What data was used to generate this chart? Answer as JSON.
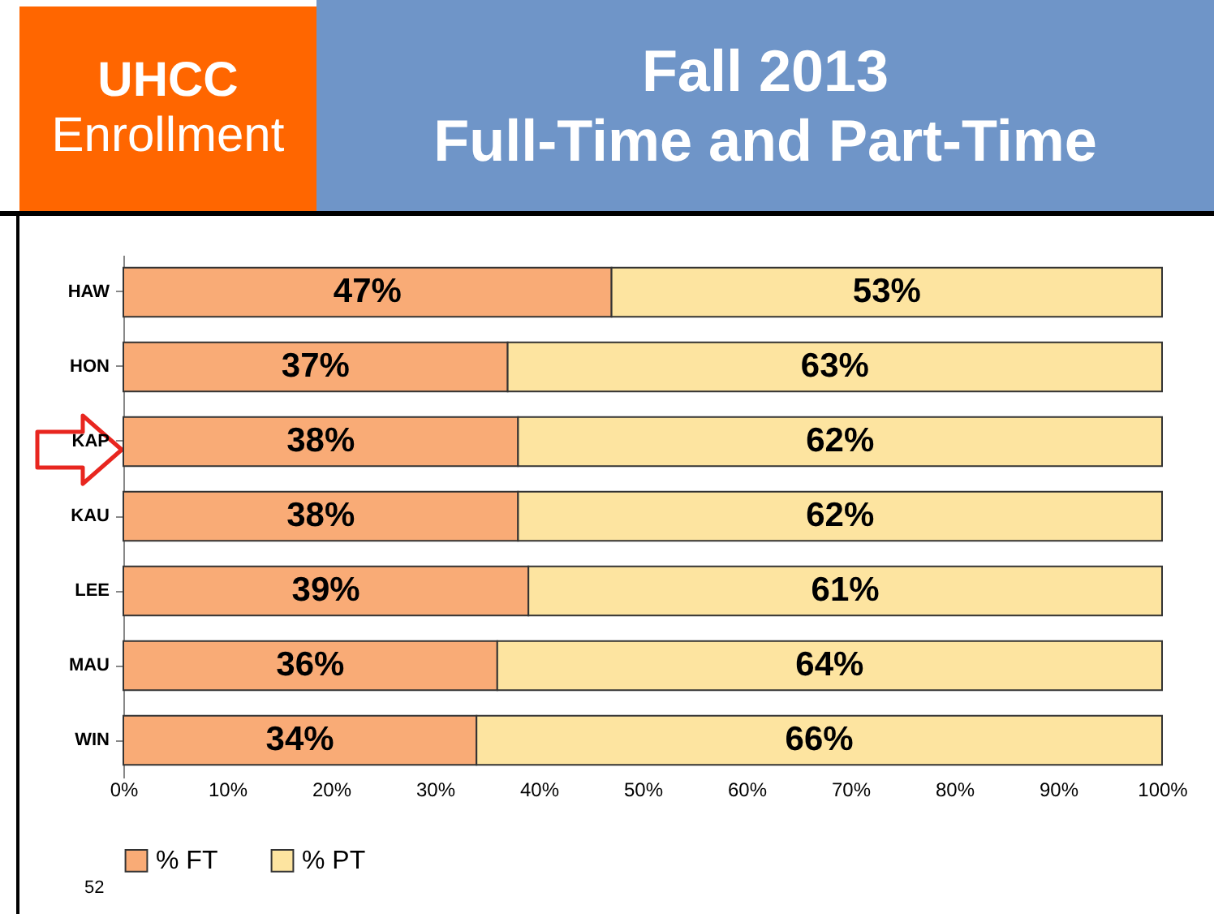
{
  "chart_data": {
    "type": "bar",
    "title": "Fall 2013\nFull-Time and Part-Time",
    "subtitle": "UHCC\nEnrollment",
    "orientation": "horizontal",
    "stacked": true,
    "categories": [
      "HAW",
      "HON",
      "KAP",
      "KAU",
      "LEE",
      "MAU",
      "WIN"
    ],
    "series": [
      {
        "name": "% FT",
        "color": "#f9ab76",
        "values": [
          47,
          37,
          38,
          38,
          39,
          36,
          34
        ],
        "value_labels": [
          "47%",
          "37%",
          "38%",
          "38%",
          "39%",
          "36%",
          "34%"
        ]
      },
      {
        "name": "% PT",
        "color": "#fde4a0",
        "values": [
          53,
          63,
          62,
          62,
          61,
          64,
          66
        ],
        "value_labels": [
          "53%",
          "63%",
          "62%",
          "62%",
          "61%",
          "64%",
          "66%"
        ]
      }
    ],
    "xlim": [
      0,
      100
    ],
    "xticks": [
      {
        "value": 0,
        "label": "0%"
      },
      {
        "value": 10,
        "label": "10%"
      },
      {
        "value": 20,
        "label": "20%"
      },
      {
        "value": 30,
        "label": "30%"
      },
      {
        "value": 40,
        "label": "40%"
      },
      {
        "value": 50,
        "label": "50%"
      },
      {
        "value": 60,
        "label": "60%"
      },
      {
        "value": 70,
        "label": "70%"
      },
      {
        "value": 80,
        "label": "80%"
      },
      {
        "value": 90,
        "label": "90%"
      },
      {
        "value": 100,
        "label": "100%"
      }
    ],
    "grid": false,
    "legend": "bottom",
    "annotations": [
      "52"
    ]
  }
}
